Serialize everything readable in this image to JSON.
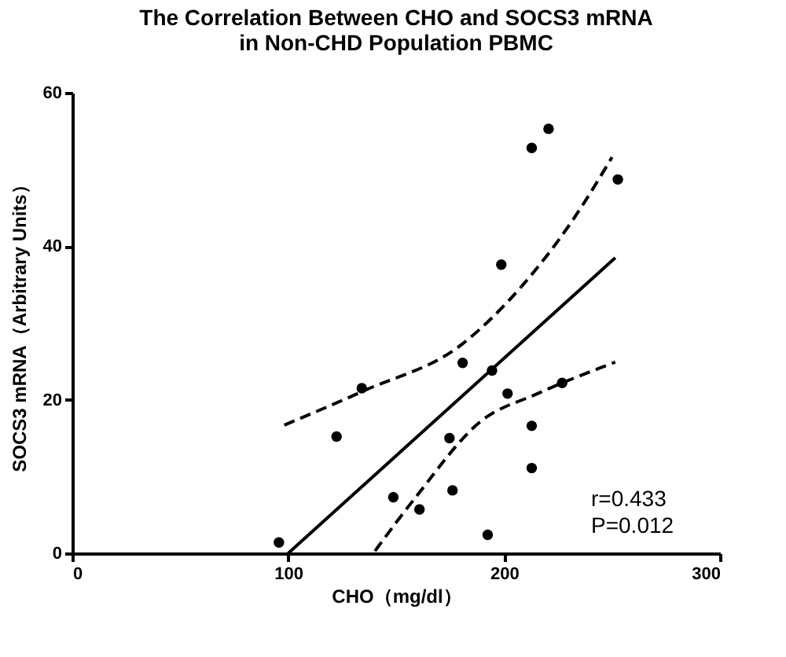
{
  "chart_data": {
    "type": "scatter",
    "title": "The Correlation Between CHO and SOCS3 mRNA\nin Non-CHD Population PBMC",
    "xlabel": "CHO（mg/dl）",
    "ylabel": "SOCS3 mRNA（Arbitrary Units）",
    "xlim": [
      0,
      300
    ],
    "xticks": [
      0,
      100,
      200,
      300
    ],
    "ylim": [
      0,
      60
    ],
    "yticks": [
      0,
      20,
      40,
      60
    ],
    "grid": false,
    "annotations": [
      "r=0.433",
      "P=0.012"
    ],
    "series": [
      {
        "marker": "circle",
        "color": "#000000",
        "x": [
          95.7,
          122.4,
          134.1,
          148.7,
          160.8,
          174.7,
          176.1,
          180.8,
          192.4,
          194.4,
          198.7,
          201.6,
          212.8,
          212.8,
          212.8,
          220.6,
          226.9,
          252.7
        ],
        "values": [
          1.4,
          15.2,
          21.5,
          7.3,
          5.7,
          15.0,
          8.2,
          24.8,
          2.4,
          23.8,
          37.6,
          20.8,
          16.6,
          11.1,
          52.8,
          55.3,
          22.2,
          48.7
        ]
      },
      {
        "type": "line",
        "color": "#000000",
        "line_style": "solid",
        "x": [
          100,
          251.5
        ],
        "values": [
          0,
          38.5
        ]
      },
      {
        "type": "line",
        "color": "#000000",
        "line_style": "dashed",
        "x": [
          98.2,
          135.3,
          180.8,
          208.2,
          232.5,
          250
        ],
        "values": [
          16.7,
          21.2,
          27.3,
          34.8,
          43.7,
          51.6
        ]
      },
      {
        "type": "line",
        "color": "#000000",
        "line_style": "dashed",
        "x": [
          140.2,
          159.6,
          188.8,
          215.5,
          251.5
        ],
        "values": [
          0.3,
          7.5,
          17.1,
          20.8,
          24.9
        ]
      }
    ]
  }
}
